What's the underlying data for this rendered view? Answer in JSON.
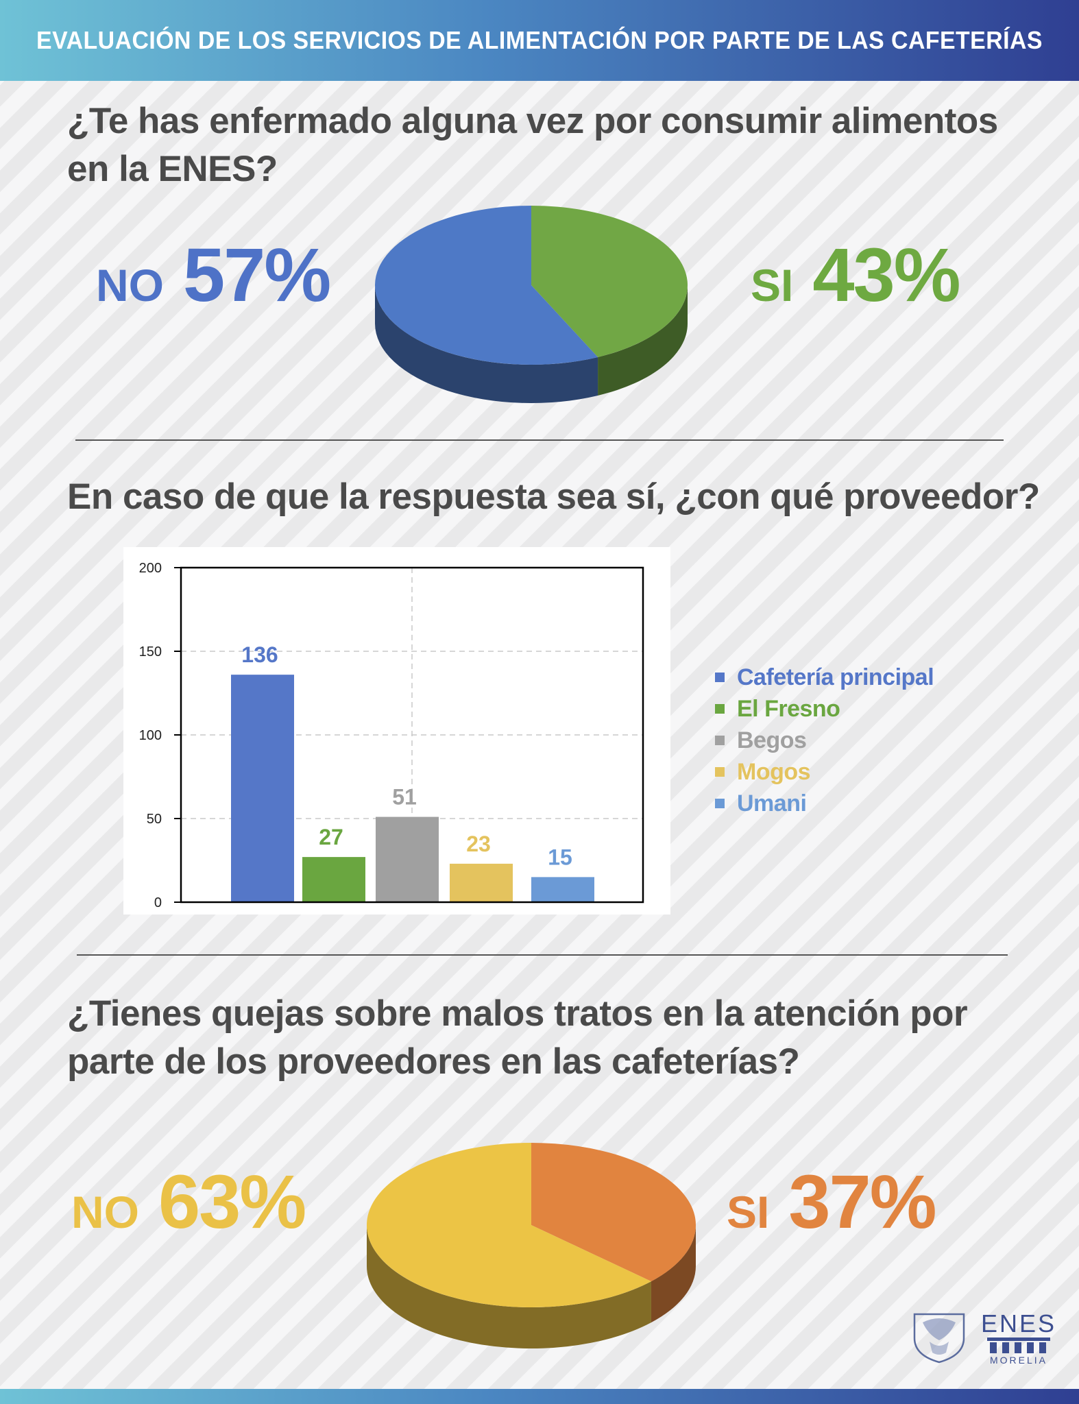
{
  "header": {
    "title": "EVALUACIÓN DE LOS SERVICIOS DE ALIMENTACIÓN POR PARTE DE LAS CAFETERÍAS"
  },
  "colors": {
    "blue": "#4e72c7",
    "green": "#6ea941",
    "gray": "#9e9e9e",
    "yellow": "#e7c45c",
    "light_blue": "#6b9ad6",
    "orange": "#e1843f",
    "text": "#4a4a4a"
  },
  "section1": {
    "question": "¿Te has enfermado alguna vez por consumir alimentos en la ENES?",
    "no_word": "NO",
    "no_pct": "57%",
    "si_word": "SI",
    "si_pct": "43%"
  },
  "section2": {
    "question": "En caso de que la respuesta sea sí, ¿con qué proveedor?"
  },
  "section3": {
    "question": "¿Tienes quejas sobre malos tratos en la atención por parte de los proveedores en las cafeterías?",
    "no_word": "NO",
    "no_pct": "63%",
    "si_word": "SI",
    "si_pct": "37%"
  },
  "logo": {
    "name": "ENES",
    "sub": "MORELIA"
  },
  "chart_data": [
    {
      "type": "pie",
      "labels": [
        "NO",
        "SI"
      ],
      "values": [
        57,
        43
      ],
      "colors": [
        "#4e79c6",
        "#71a745"
      ]
    },
    {
      "type": "bar",
      "categories": [
        "Cafetería principal",
        "El Fresno",
        "Begos",
        "Mogos",
        "Umani"
      ],
      "values": [
        136,
        27,
        51,
        23,
        15
      ],
      "colors": [
        "#5577c8",
        "#6aa640",
        "#a0a0a0",
        "#e4c35e",
        "#6b9ad6"
      ],
      "ylim": [
        0,
        200
      ],
      "yticks": [
        0,
        50,
        100,
        150,
        200
      ],
      "grid": true,
      "legend_position": "right"
    },
    {
      "type": "pie",
      "labels": [
        "NO",
        "SI"
      ],
      "values": [
        63,
        37
      ],
      "colors": [
        "#ecc445",
        "#e1843f"
      ]
    }
  ]
}
